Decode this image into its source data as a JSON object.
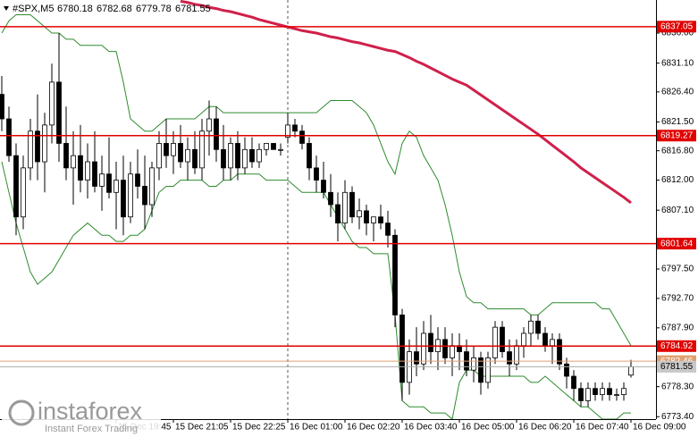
{
  "chart_data": {
    "type": "candlestick",
    "title": "#SPX,M5",
    "categories": [
      null,
      null,
      null,
      null,
      null,
      null,
      null,
      null,
      null,
      null,
      null,
      null,
      null,
      null,
      null,
      null,
      "15 Dec 19:45",
      null,
      null,
      null,
      null,
      null,
      null,
      null,
      "15 Dec 21:05",
      null,
      null,
      null,
      null,
      null,
      null,
      null,
      "15 Dec 22:25",
      null,
      null,
      null,
      null,
      null,
      null,
      null,
      "16 Dec 01:00",
      null,
      null,
      null,
      null,
      null,
      null,
      null,
      "16 Dec 02:20",
      null,
      null,
      null,
      null,
      null,
      null,
      null,
      "16 Dec 03:40",
      null,
      null,
      null,
      null,
      null,
      null,
      null,
      "16 Dec 05:00",
      null,
      null,
      null,
      null,
      null,
      null,
      null,
      "16 Dec 06:20",
      null,
      null,
      null,
      null,
      null,
      null,
      null,
      "16 Dec 07:40",
      null,
      null,
      null,
      null,
      null,
      null,
      null,
      "16 Dec 09:00"
    ],
    "open": [
      6826,
      6822,
      6816,
      6806,
      6814,
      6820,
      6815,
      6821,
      6828,
      6818,
      6814,
      6816,
      6812,
      6815,
      6811,
      6813,
      6810,
      6812,
      6806,
      6813,
      6811,
      6808,
      6814,
      6818,
      6816,
      6818,
      6815,
      6817,
      6814,
      6820,
      6822,
      6817,
      6814,
      6818,
      6814,
      6817,
      6815,
      6817,
      6818,
      6817,
      6819,
      6821,
      6820,
      6818,
      6814,
      6812,
      6810,
      6808,
      6805,
      6810,
      6806,
      6807,
      6805,
      6806,
      6805,
      6803,
      6790,
      6779,
      6784,
      6782,
      6787,
      6784,
      6786,
      6783,
      6785,
      6784,
      6781,
      6783,
      6779,
      6783,
      6788,
      6784,
      6782,
      6785,
      6787,
      6789,
      6787,
      6785,
      6786,
      6782,
      6780,
      6778,
      6776,
      6778,
      6777,
      6778,
      6777,
      6777,
      6780.18
    ],
    "high": [
      6829,
      6824,
      6818,
      6816,
      6822,
      6826,
      6823,
      6831,
      6836,
      6824,
      6820,
      6821,
      6818,
      6820,
      6816,
      6819,
      6815,
      6816,
      6815,
      6817,
      6816,
      6815,
      6820,
      6822,
      6820,
      6821,
      6819,
      6820,
      6822,
      6825,
      6824,
      6821,
      6819,
      6820,
      6819,
      6819,
      6818,
      6818,
      6818,
      6818,
      6823,
      6822,
      6821,
      6819,
      6816,
      6815,
      6813,
      6810,
      6812,
      6811,
      6809,
      6808,
      6806,
      6808,
      6807,
      6804,
      6791,
      6786,
      6788,
      6789,
      6790,
      6788,
      6788,
      6787,
      6787,
      6786,
      6785,
      6784,
      6784,
      6789,
      6789,
      6786,
      6786,
      6788,
      6790,
      6790,
      6788,
      6787,
      6787,
      6783,
      6781,
      6779,
      6779,
      6779,
      6779,
      6779,
      6778,
      6779,
      6782.68
    ],
    "low": [
      6820,
      6815,
      6803,
      6804,
      6812,
      6812,
      6810,
      6818,
      6815,
      6812,
      6808,
      6810,
      6809,
      6810,
      6807,
      6809,
      6804,
      6803,
      6805,
      6809,
      6804,
      6806,
      6812,
      6814,
      6813,
      6814,
      6812,
      6813,
      6812,
      6816,
      6815,
      6812,
      6812,
      6812,
      6813,
      6814,
      6814,
      6816,
      6817,
      6816,
      6818,
      6819,
      6817,
      6812,
      6810,
      6809,
      6806,
      6802,
      6804,
      6805,
      6804,
      6803,
      6802,
      6804,
      6801,
      6788,
      6776,
      6777,
      6780,
      6781,
      6782,
      6781,
      6782,
      6780,
      6781,
      6780,
      6779,
      6777,
      6778,
      6782,
      6783,
      6780,
      6781,
      6783,
      6785,
      6786,
      6784,
      6782,
      6781,
      6778,
      6776,
      6775,
      6775,
      6776,
      6776,
      6776,
      6776,
      6776,
      6779.78
    ],
    "close": [
      6822,
      6816,
      6806,
      6814,
      6820,
      6815,
      6821,
      6828,
      6818,
      6814,
      6816,
      6812,
      6815,
      6811,
      6813,
      6810,
      6812,
      6806,
      6813,
      6811,
      6808,
      6814,
      6818,
      6816,
      6818,
      6815,
      6817,
      6814,
      6820,
      6822,
      6817,
      6814,
      6818,
      6814,
      6817,
      6815,
      6817,
      6818,
      6817,
      6817,
      6821,
      6820,
      6818,
      6814,
      6812,
      6810,
      6808,
      6805,
      6810,
      6806,
      6807,
      6805,
      6806,
      6805,
      6803,
      6790,
      6779,
      6784,
      6782,
      6787,
      6784,
      6786,
      6783,
      6785,
      6784,
      6781,
      6783,
      6779,
      6783,
      6788,
      6784,
      6782,
      6785,
      6787,
      6789,
      6787,
      6785,
      6786,
      6782,
      6780,
      6778,
      6776,
      6778,
      6777,
      6778,
      6777,
      6777,
      6778,
      6781.55
    ],
    "overlays": [
      {
        "color": "#2e8b2e",
        "values": [
          6836,
          6838,
          6839,
          6839,
          6839,
          6838,
          6837,
          6836,
          6836,
          6835,
          6835,
          6834,
          6834,
          6834,
          6834,
          6833,
          6833,
          6828,
          6822,
          6821,
          6820,
          6820,
          6821,
          6822,
          6822,
          6822,
          6822,
          6822,
          6823,
          6824,
          6824,
          6823,
          6823,
          6823,
          6823,
          6823,
          6823,
          6823,
          6823,
          6823,
          6823,
          6823,
          6823,
          6823,
          6823,
          6824,
          6825,
          6825,
          6825,
          6825,
          6824,
          6823,
          6821,
          6818,
          6815,
          6813,
          6818,
          6820,
          6819,
          6816,
          6814,
          6812,
          6808,
          6803,
          6797,
          6793,
          6792,
          6792,
          6791,
          6791,
          6791,
          6791,
          6791,
          6791,
          6790,
          6790,
          6791,
          6792,
          6792,
          6792,
          6792,
          6792,
          6792,
          6792,
          6791,
          6791,
          6789,
          6787,
          6785
        ]
      },
      {
        "color": "#2e8b2e",
        "values": [
          6815,
          6810,
          6805,
          6801,
          6797,
          6795,
          6796,
          6797,
          6799,
          6801,
          6803,
          6804,
          6805,
          6804,
          6803,
          6803,
          6802,
          6802,
          6803,
          6803,
          6804,
          6807,
          6810,
          6811,
          6811,
          6812,
          6812,
          6812,
          6812,
          6811,
          6811,
          6812,
          6812,
          6813,
          6813,
          6813,
          6813,
          6812,
          6812,
          6812,
          6812,
          6811,
          6810,
          6810,
          6810,
          6810,
          6808,
          6806,
          6804,
          6802,
          6801,
          6801,
          6800,
          6800,
          6800,
          6790,
          6776,
          6775,
          6775,
          6775,
          6774,
          6774,
          6774,
          6773,
          6779,
          6781,
          6781,
          6780,
          6780,
          6780,
          6780,
          6780,
          6780,
          6780,
          6779,
          6779,
          6780,
          6779,
          6778,
          6777,
          6776,
          6775,
          6775,
          6774,
          6773,
          6773,
          6773,
          6774,
          6774
        ]
      },
      {
        "color": "#d0204a",
        "values": [
          null,
          null,
          null,
          null,
          null,
          null,
          null,
          null,
          null,
          null,
          null,
          null,
          null,
          null,
          null,
          null,
          null,
          null,
          null,
          null,
          null,
          null,
          null,
          null,
          null,
          6841.2,
          6841,
          6840.7,
          6840.5,
          6840.2,
          6840,
          6839.7,
          6839.5,
          6839.2,
          6838.9,
          6838.6,
          6838.2,
          6837.9,
          6837.6,
          6837.3,
          6837,
          6836.7,
          6836.4,
          6836.2,
          6836,
          6835.7,
          6835.4,
          6835.2,
          6834.9,
          6834.6,
          6834.4,
          6834.1,
          6833.8,
          6833.5,
          6833.2,
          6833,
          6832.5,
          6832,
          6831.4,
          6830.9,
          6830.3,
          6829.7,
          6829.1,
          6828.5,
          6828,
          6827.5,
          6826.7,
          6825.9,
          6825.1,
          6824.3,
          6823.5,
          6822.7,
          6821.9,
          6821.1,
          6820.3,
          6819.5,
          6818.6,
          6817.7,
          6816.8,
          6815.9,
          6815,
          6814,
          6813.2,
          6812.4,
          6811.6,
          6810.8,
          6810,
          6809.2,
          6808.3
        ]
      }
    ],
    "levels": [
      {
        "value": 6837.05,
        "color": "#e00000"
      },
      {
        "value": 6819.27,
        "color": "#e00000"
      },
      {
        "value": 6801.64,
        "color": "#e00000"
      },
      {
        "value": 6784.92,
        "color": "#e00000"
      },
      {
        "value": 6782.46,
        "color": "#e0a070"
      }
    ],
    "ylim": [
      6773,
      6841.4
    ],
    "yticks": [
      {
        "value": 6836,
        "label": "6836.00"
      },
      {
        "value": 6831.1,
        "label": "6831.10"
      },
      {
        "value": 6826.4,
        "label": "6826.40"
      },
      {
        "value": 6821.5,
        "label": "6821.50"
      },
      {
        "value": 6816.8,
        "label": "6816.80"
      },
      {
        "value": 6812,
        "label": "6812.00"
      },
      {
        "value": 6807.1,
        "label": "6807.10"
      },
      {
        "value": 6797.5,
        "label": "6797.50"
      },
      {
        "value": 6792.7,
        "label": "6792.70"
      },
      {
        "value": 6787.9,
        "label": "6787.90"
      },
      {
        "value": 6778.3,
        "label": "6778.30"
      },
      {
        "value": 6773.4,
        "label": "6773.40"
      }
    ],
    "grid": false,
    "watermark": {
      "brand": "instaforex",
      "tagline": "Instant Forex Trading"
    }
  }
}
